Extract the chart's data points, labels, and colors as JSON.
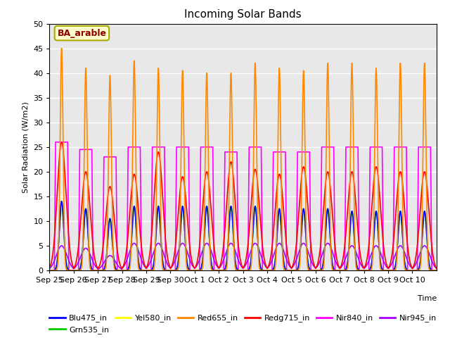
{
  "title": "Incoming Solar Bands",
  "xlabel": "Time",
  "ylabel": "Solar Radiation (W/m2)",
  "annotation": "BA_arable",
  "annotation_color": "#8B0000",
  "annotation_bg": "#FFFFCC",
  "ylim": [
    0,
    50
  ],
  "series": {
    "Blu475_in": {
      "color": "#0000FF"
    },
    "Grn535_in": {
      "color": "#00CC00"
    },
    "Yel580_in": {
      "color": "#FFFF00"
    },
    "Red655_in": {
      "color": "#FF8800"
    },
    "Redg715_in": {
      "color": "#FF0000"
    },
    "Nir840_in": {
      "color": "#FF00FF"
    },
    "Nir945_in": {
      "color": "#AA00FF"
    }
  },
  "tick_labels": [
    "Sep 25",
    "Sep 26",
    "Sep 27",
    "Sep 28",
    "Sep 29",
    "Sep 30",
    "Oct 1",
    "Oct 2",
    "Oct 3",
    "Oct 4",
    "Oct 5",
    "Oct 6",
    "Oct 7",
    "Oct 8",
    "Oct 9",
    "Oct 10"
  ],
  "n_days": 16,
  "bg_color": "#E8E8E8",
  "grid_color": "#FFFFFF",
  "red655_peaks": [
    45,
    41,
    39.5,
    42.5,
    41,
    40.5,
    40,
    40,
    42,
    41,
    40.5,
    42,
    42,
    41,
    42,
    42
  ],
  "redg715_peaks": [
    26,
    20,
    17,
    19.5,
    24,
    19,
    20,
    22,
    20.5,
    19.5,
    21,
    20,
    20,
    21,
    20,
    20
  ],
  "nir840_peaks": [
    26,
    24.5,
    23,
    25,
    25,
    25,
    25,
    24,
    25,
    24,
    24,
    25,
    25,
    25,
    25,
    25
  ],
  "blu475_peaks": [
    14,
    12.5,
    10.5,
    13,
    13,
    13,
    13,
    13,
    13,
    12.5,
    12.5,
    12.5,
    12,
    12,
    12,
    12
  ],
  "yel580_peaks": [
    14,
    12.5,
    10.5,
    13,
    13,
    13,
    13,
    13,
    13,
    12.5,
    12.5,
    12.5,
    12,
    12,
    12,
    12
  ],
  "nir945_peaks": [
    5,
    4.5,
    3.0,
    5.5,
    5.5,
    5.5,
    5.5,
    5.5,
    5.5,
    5.5,
    5.5,
    5.5,
    5,
    5,
    5,
    5
  ]
}
